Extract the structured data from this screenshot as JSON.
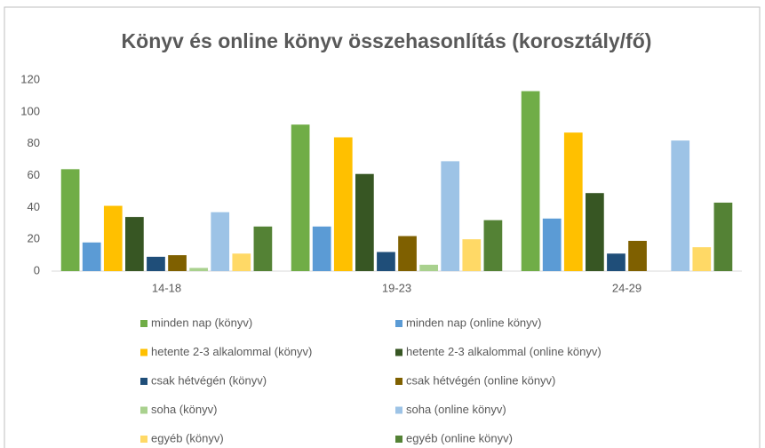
{
  "chart_data": {
    "type": "bar",
    "title": "Könyv és online könyv összehasonlítás (korosztály/fő)",
    "categories": [
      "14-18",
      "19-23",
      "24-29"
    ],
    "series": [
      {
        "name": "minden nap (könyv)",
        "color": "#70ad47",
        "values": [
          64,
          92,
          113
        ]
      },
      {
        "name": "minden nap (online könyv)",
        "color": "#5b9bd5",
        "values": [
          18,
          28,
          33
        ]
      },
      {
        "name": "hetente 2-3 alkalommal (könyv)",
        "color": "#ffc000",
        "values": [
          41,
          84,
          87
        ]
      },
      {
        "name": "hetente 2-3 alkalommal (online könyv)",
        "color": "#375623",
        "values": [
          34,
          61,
          49
        ]
      },
      {
        "name": "csak hétvégén (könyv)",
        "color": "#1f4e79",
        "values": [
          9,
          12,
          11
        ]
      },
      {
        "name": "csak hétvégén (online könyv)",
        "color": "#7f6000",
        "values": [
          10,
          22,
          19
        ]
      },
      {
        "name": "soha (könyv)",
        "color": "#a9d18e",
        "values": [
          2,
          4,
          0
        ]
      },
      {
        "name": "soha (online könyv)",
        "color": "#9dc3e6",
        "values": [
          37,
          69,
          82
        ]
      },
      {
        "name": "egyéb (könyv)",
        "color": "#ffd966",
        "values": [
          11,
          20,
          15
        ]
      },
      {
        "name": "egyéb (online könyv)",
        "color": "#548235",
        "values": [
          28,
          32,
          43
        ]
      }
    ],
    "ylim": [
      0,
      120
    ],
    "yticks": [
      0,
      20,
      40,
      60,
      80,
      100,
      120
    ],
    "grid": false,
    "legend": "bottom"
  }
}
